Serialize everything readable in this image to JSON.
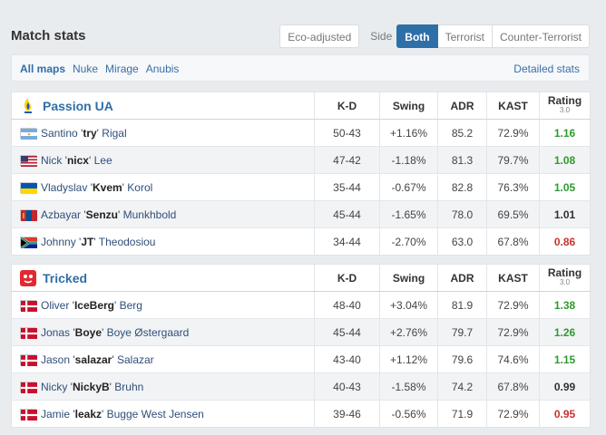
{
  "header": {
    "title": "Match stats",
    "eco_label": "Eco-adjusted",
    "side_label": "Side",
    "side_options": [
      "Both",
      "Terrorist",
      "Counter-Terrorist"
    ]
  },
  "maps": {
    "items": [
      "All maps",
      "Nuke",
      "Mirage",
      "Anubis"
    ],
    "detailed_label": "Detailed stats"
  },
  "columns": {
    "kd": "K-D",
    "swing": "Swing",
    "adr": "ADR",
    "kast": "KAST",
    "rating": "Rating",
    "rating_version": "3.0"
  },
  "teams": [
    {
      "name": "Passion UA",
      "logo_icon": "passion-ua-logo-icon",
      "players": [
        {
          "first": "Santino",
          "nick": "try",
          "last": "Rigal",
          "flag": "argentina-flag-icon",
          "kd": "50-43",
          "swing": "+1.16%",
          "adr": "85.2",
          "kast": "72.9%",
          "rating": "1.16"
        },
        {
          "first": "Nick",
          "nick": "nicx",
          "last": "Lee",
          "flag": "usa-flag-icon",
          "kd": "47-42",
          "swing": "-1.18%",
          "adr": "81.3",
          "kast": "79.7%",
          "rating": "1.08"
        },
        {
          "first": "Vladyslav",
          "nick": "Kvem",
          "last": "Korol",
          "flag": "ukraine-flag-icon",
          "kd": "35-44",
          "swing": "-0.67%",
          "adr": "82.8",
          "kast": "76.3%",
          "rating": "1.05"
        },
        {
          "first": "Azbayar",
          "nick": "Senzu",
          "last": "Munkhbold",
          "flag": "mongolia-flag-icon",
          "kd": "45-44",
          "swing": "-1.65%",
          "adr": "78.0",
          "kast": "69.5%",
          "rating": "1.01"
        },
        {
          "first": "Johnny",
          "nick": "JT",
          "last": "Theodosiou",
          "flag": "south-africa-flag-icon",
          "kd": "34-44",
          "swing": "-2.70%",
          "adr": "63.0",
          "kast": "67.8%",
          "rating": "0.86"
        }
      ]
    },
    {
      "name": "Tricked",
      "logo_icon": "tricked-logo-icon",
      "players": [
        {
          "first": "Oliver",
          "nick": "IceBerg",
          "last": "Berg",
          "flag": "denmark-flag-icon",
          "kd": "48-40",
          "swing": "+3.04%",
          "adr": "81.9",
          "kast": "72.9%",
          "rating": "1.38"
        },
        {
          "first": "Jonas",
          "nick": "Boye",
          "last": "Boye Østergaard",
          "flag": "denmark-flag-icon",
          "kd": "45-44",
          "swing": "+2.76%",
          "adr": "79.7",
          "kast": "72.9%",
          "rating": "1.26"
        },
        {
          "first": "Jason",
          "nick": "salazar",
          "last": "Salazar",
          "flag": "denmark-flag-icon",
          "kd": "43-40",
          "swing": "+1.12%",
          "adr": "79.6",
          "kast": "74.6%",
          "rating": "1.15"
        },
        {
          "first": "Nicky",
          "nick": "NickyB",
          "last": "Bruhn",
          "flag": "denmark-flag-icon",
          "kd": "40-43",
          "swing": "-1.58%",
          "adr": "74.2",
          "kast": "67.8%",
          "rating": "0.99"
        },
        {
          "first": "Jamie",
          "nick": "leakz",
          "last": "Bugge West Jensen",
          "flag": "denmark-flag-icon",
          "kd": "39-46",
          "swing": "-0.56%",
          "adr": "71.9",
          "kast": "72.9%",
          "rating": "0.95"
        }
      ]
    }
  ],
  "colors": {
    "accent": "#2f6fa8",
    "positive": "#2e9a2e",
    "negative": "#c8332e"
  }
}
